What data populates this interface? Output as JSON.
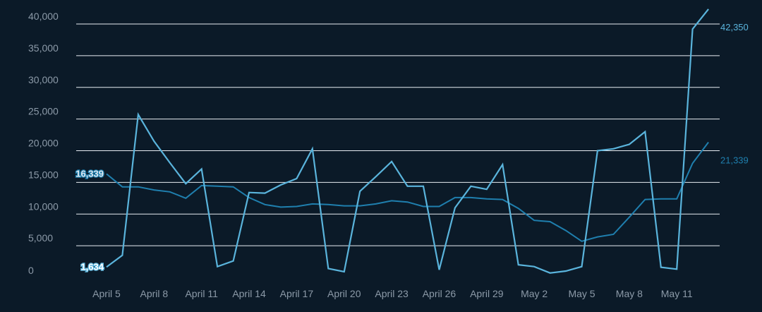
{
  "chart_data": {
    "type": "line",
    "x_categories": [
      "April 5",
      "April 6",
      "April 7",
      "April 8",
      "April 9",
      "April 10",
      "April 11",
      "April 12",
      "April 13",
      "April 14",
      "April 15",
      "April 16",
      "April 17",
      "April 18",
      "April 19",
      "April 20",
      "April 21",
      "April 22",
      "April 23",
      "April 24",
      "April 25",
      "April 26",
      "April 27",
      "April 28",
      "April 29",
      "April 30",
      "May 1",
      "May 2",
      "May 3",
      "May 4",
      "May 5",
      "May 6",
      "May 7",
      "May 8",
      "May 9",
      "May 10",
      "May 11",
      "May 12",
      "May 13"
    ],
    "x_tick_labels": [
      "April 5",
      "April 8",
      "April 11",
      "April 14",
      "April 17",
      "April 20",
      "April 23",
      "April 26",
      "April 29",
      "May 2",
      "May 5",
      "May 8",
      "May 11"
    ],
    "ylim": [
      0,
      40000
    ],
    "y_ticks": [
      0,
      5000,
      10000,
      15000,
      20000,
      25000,
      30000,
      35000,
      40000
    ],
    "y_tick_labels": [
      "0",
      "5,000",
      "10,000",
      "15,000",
      "20,000",
      "25,000",
      "30,000",
      "35,000",
      "40,000"
    ],
    "grid": true,
    "series": [
      {
        "color": "#5ab4dc",
        "start_label": "1,634",
        "end_label": "42,350",
        "values": [
          1634,
          3500,
          25700,
          21500,
          18100,
          14800,
          17100,
          1700,
          2600,
          13400,
          13300,
          14600,
          15600,
          20300,
          1400,
          900,
          13600,
          15900,
          18300,
          14400,
          14400,
          1200,
          11000,
          14400,
          13900,
          17800,
          2000,
          1700,
          700,
          1000,
          1700,
          20000,
          20300,
          21000,
          23000,
          1600,
          1300,
          39200,
          42350
        ]
      },
      {
        "color": "#1f7fae",
        "start_label": "16,339",
        "end_label": "21,339",
        "values": [
          16339,
          14300,
          14300,
          13800,
          13500,
          12500,
          14500,
          14400,
          14300,
          12600,
          11500,
          11100,
          11200,
          11600,
          11500,
          11300,
          11300,
          11600,
          12100,
          11900,
          11200,
          11200,
          12600,
          12600,
          12400,
          12300,
          10900,
          9000,
          8800,
          7400,
          5700,
          6400,
          6800,
          9500,
          12300,
          12400,
          12400,
          18000,
          21339
        ]
      }
    ]
  }
}
